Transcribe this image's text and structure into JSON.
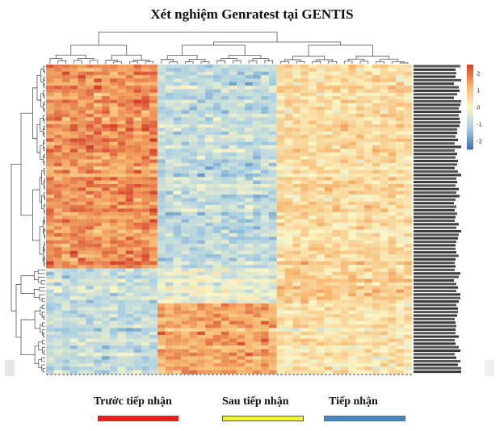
{
  "title": "Xét nghiệm Genratest tại GENTIS",
  "chart_data": {
    "type": "heatmap",
    "title": "Xét nghiệm Genratest tại GENTIS",
    "rows": 88,
    "columns": 46,
    "column_groups": [
      {
        "name": "Trước tiếp nhận",
        "columns": 14,
        "color": "#e8201f"
      },
      {
        "name": "Sau tiếp nhận",
        "columns": 15,
        "color": "#f4f041"
      },
      {
        "name": "Tiếp nhận",
        "columns": 17,
        "color": "#4a86bd"
      }
    ],
    "color_scale": {
      "min": -2.5,
      "max": 2.5,
      "ticks": [
        2,
        1,
        0,
        -1,
        -2
      ],
      "colors": [
        "#3a6fae",
        "#abd0e3",
        "#fbf6c6",
        "#f6b36b",
        "#d43e2a"
      ]
    },
    "row_clusters": [
      {
        "rows": [
          0,
          58
        ],
        "pattern": {
          "Trước tiếp nhận": 1.6,
          "Sau tiếp nhận": -0.9,
          "Tiếp nhận": 0.5
        }
      },
      {
        "rows": [
          58,
          68
        ],
        "pattern": {
          "Trước tiếp nhận": -0.7,
          "Sau tiếp nhận": -0.2,
          "Tiếp nhận": 0.9
        }
      },
      {
        "rows": [
          68,
          88
        ],
        "pattern": {
          "Trước tiếp nhận": -0.9,
          "Sau tiếp nhận": 1.3,
          "Tiếp nhận": 0.3
        }
      }
    ]
  },
  "legend": [
    {
      "label": "Trước tiếp nhận",
      "color": "#e8201f"
    },
    {
      "label": "Sau tiếp nhận",
      "color": "#f4f041"
    },
    {
      "label": "Tiếp nhận",
      "color": "#4a86bd"
    }
  ]
}
